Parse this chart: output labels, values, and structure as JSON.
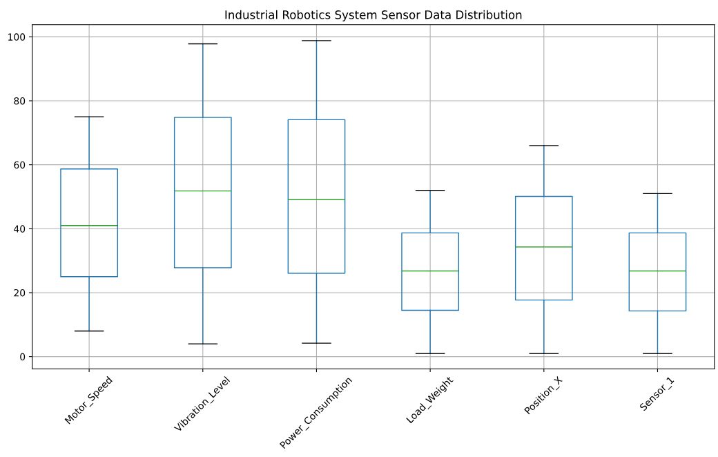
{
  "chart_data": {
    "type": "box",
    "title": "Industrial Robotics System Sensor Data Distribution",
    "categories": [
      "Motor_Speed",
      "Vibration_Level",
      "Power_Consumption",
      "Load_Weight",
      "Position_X",
      "Sensor_1"
    ],
    "boxes": [
      {
        "low": 8.0,
        "q1": 25.0,
        "median": 41.0,
        "q3": 58.7,
        "high": 75.0
      },
      {
        "low": 4.0,
        "q1": 27.8,
        "median": 51.8,
        "q3": 74.8,
        "high": 97.8
      },
      {
        "low": 4.2,
        "q1": 26.1,
        "median": 49.2,
        "q3": 74.1,
        "high": 98.8
      },
      {
        "low": 1.0,
        "q1": 14.5,
        "median": 26.8,
        "q3": 38.7,
        "high": 52.0
      },
      {
        "low": 1.0,
        "q1": 17.7,
        "median": 34.3,
        "q3": 50.1,
        "high": 66.0
      },
      {
        "low": 1.0,
        "q1": 14.3,
        "median": 26.8,
        "q3": 38.7,
        "high": 51.0
      }
    ],
    "color": "#1f77b4",
    "ylim": [
      -3.8,
      103.8
    ],
    "yticks": [
      0,
      20,
      40,
      60,
      80,
      100
    ],
    "grid": true
  }
}
